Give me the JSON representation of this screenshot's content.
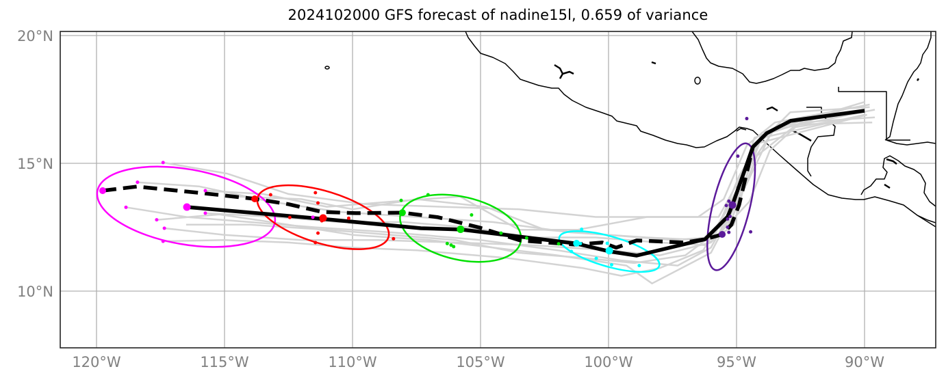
{
  "title": "2024102000 GFS forecast of nadine15l, 0.659 of variance",
  "chart_data": {
    "type": "map",
    "title": "2024102000 GFS forecast of nadine15l, 0.659 of variance",
    "extent": {
      "lon": [
        -121.4,
        -87.2
      ],
      "lat": [
        7.8,
        20.2
      ]
    },
    "grid": true,
    "xticks": [
      {
        "lon": -120,
        "label": "120°W"
      },
      {
        "lon": -115,
        "label": "115°W"
      },
      {
        "lon": -110,
        "label": "110°W"
      },
      {
        "lon": -105,
        "label": "105°W"
      },
      {
        "lon": -100,
        "label": "100°W"
      },
      {
        "lon": -95,
        "label": "95°W"
      },
      {
        "lon": -90,
        "label": "90°W"
      }
    ],
    "yticks": [
      {
        "lat": 20,
        "label": "20°N"
      },
      {
        "lat": 15,
        "label": "15°N"
      },
      {
        "lat": 10,
        "label": "10°N"
      }
    ],
    "colors": {
      "ensemble": "#d3d3d3",
      "mean_track": "#000000",
      "dashed_track": "#000000",
      "coast": "#000000",
      "grid": "#b0b0b0",
      "groups": [
        "#ff00ff",
        "#ff0000",
        "#00e000",
        "#00ffff",
        "#5b1a9a"
      ]
    },
    "mean_track": [
      [
        -116.47,
        13.29
      ],
      [
        -111.2,
        12.83
      ],
      [
        -107.33,
        12.46
      ],
      [
        -105.75,
        12.41
      ],
      [
        -101.31,
        11.87
      ],
      [
        -99.95,
        11.55
      ],
      [
        -98.9,
        11.39
      ],
      [
        -96.23,
        12.03
      ],
      [
        -95.35,
        12.91
      ],
      [
        -95.16,
        13.37
      ],
      [
        -94.36,
        15.64
      ],
      [
        -93.82,
        16.18
      ],
      [
        -92.89,
        16.66
      ],
      [
        -90.0,
        17.06
      ]
    ],
    "dashed_track": [
      [
        -119.76,
        13.93
      ],
      [
        -118.42,
        14.09
      ],
      [
        -115.75,
        13.82
      ],
      [
        -113.82,
        13.61
      ],
      [
        -112.5,
        13.4
      ],
      [
        -111.2,
        13.1
      ],
      [
        -109.87,
        13.05
      ],
      [
        -108.05,
        13.07
      ],
      [
        -106.66,
        12.89
      ],
      [
        -105.05,
        12.49
      ],
      [
        -103.45,
        11.98
      ],
      [
        -101.31,
        11.82
      ],
      [
        -100.24,
        11.9
      ],
      [
        -99.7,
        11.7
      ],
      [
        -98.9,
        11.98
      ],
      [
        -97.03,
        11.9
      ],
      [
        -96.23,
        12.03
      ],
      [
        -95.56,
        12.22
      ],
      [
        -95.2,
        12.6
      ],
      [
        -94.9,
        13.37
      ],
      [
        -94.36,
        15.64
      ]
    ],
    "ensemble_tracks": [
      [
        [
          -117.4,
          15.03
        ],
        [
          -114.9,
          14.6
        ],
        [
          -112.5,
          13.8
        ],
        [
          -109.5,
          13.4
        ],
        [
          -106.5,
          13.3
        ],
        [
          -103.5,
          13.2
        ],
        [
          -100.5,
          12.9
        ],
        [
          -99.2,
          12.9
        ],
        [
          -96.5,
          12.9
        ],
        [
          -95.5,
          13.6
        ],
        [
          -94.6,
          15.7
        ],
        [
          -93.5,
          16.6
        ],
        [
          -89.8,
          17.3
        ]
      ],
      [
        [
          -118.4,
          14.26
        ],
        [
          -116.0,
          14.1
        ],
        [
          -113.2,
          13.5
        ],
        [
          -110.5,
          13.1
        ],
        [
          -107.5,
          12.9
        ],
        [
          -104.5,
          12.7
        ],
        [
          -101.5,
          12.3
        ],
        [
          -98.5,
          12.1
        ],
        [
          -96.4,
          12.0
        ],
        [
          -95.2,
          12.8
        ],
        [
          -94.2,
          15.3
        ],
        [
          -92.8,
          16.4
        ],
        [
          -90.2,
          16.8
        ]
      ],
      [
        [
          -118.85,
          13.28
        ],
        [
          -116.5,
          12.9
        ],
        [
          -114.0,
          12.7
        ],
        [
          -111.5,
          12.5
        ],
        [
          -108.5,
          12.3
        ],
        [
          -105.0,
          12.0
        ],
        [
          -102.0,
          11.6
        ],
        [
          -99.5,
          11.2
        ],
        [
          -97.3,
          11.0
        ],
        [
          -96.0,
          11.7
        ],
        [
          -95.0,
          13.5
        ],
        [
          -94.1,
          15.8
        ],
        [
          -89.9,
          16.9
        ]
      ],
      [
        [
          -117.65,
          12.79
        ],
        [
          -115.2,
          13.0
        ],
        [
          -112.5,
          12.6
        ],
        [
          -110.0,
          12.2
        ],
        [
          -107.0,
          12.0
        ],
        [
          -104.5,
          11.7
        ],
        [
          -102.0,
          11.4
        ],
        [
          -99.3,
          11.0
        ],
        [
          -98.3,
          10.3
        ],
        [
          -96.0,
          11.5
        ],
        [
          -94.7,
          14.0
        ],
        [
          -93.6,
          16.3
        ],
        [
          -89.6,
          17.1
        ]
      ],
      [
        [
          -117.35,
          12.46
        ],
        [
          -115.0,
          12.2
        ],
        [
          -112.0,
          12.0
        ],
        [
          -109.0,
          12.0
        ],
        [
          -106.0,
          11.9
        ],
        [
          -103.0,
          11.8
        ],
        [
          -100.0,
          11.6
        ],
        [
          -98.0,
          11.4
        ],
        [
          -96.0,
          11.9
        ],
        [
          -94.5,
          13.5
        ],
        [
          -93.7,
          15.5
        ],
        [
          -92.5,
          16.6
        ],
        [
          -89.6,
          16.8
        ]
      ],
      [
        [
          -117.4,
          11.95
        ],
        [
          -115.0,
          12.0
        ],
        [
          -112.5,
          11.9
        ],
        [
          -110.0,
          11.7
        ],
        [
          -107.5,
          11.6
        ],
        [
          -104.0,
          11.3
        ],
        [
          -101.0,
          10.9
        ],
        [
          -99.5,
          10.6
        ],
        [
          -98.0,
          10.9
        ],
        [
          -96.3,
          11.6
        ],
        [
          -95.0,
          13.8
        ],
        [
          -94.3,
          16.0
        ],
        [
          -90.5,
          17.2
        ]
      ],
      [
        [
          -115.75,
          13.93
        ],
        [
          -113.5,
          13.8
        ],
        [
          -111.0,
          13.3
        ],
        [
          -108.5,
          13.5
        ],
        [
          -105.8,
          13.7
        ],
        [
          -103.5,
          12.4
        ],
        [
          -101.2,
          12.4
        ],
        [
          -98.5,
          12.9
        ],
        [
          -95.7,
          12.9
        ],
        [
          -95.2,
          13.8
        ],
        [
          -94.1,
          15.8
        ],
        [
          -92.9,
          17.0
        ],
        [
          -89.8,
          17.2
        ]
      ],
      [
        [
          -115.75,
          13.05
        ],
        [
          -113.0,
          12.9
        ],
        [
          -110.5,
          12.7
        ],
        [
          -108.0,
          12.7
        ],
        [
          -105.5,
          12.5
        ],
        [
          -103.0,
          12.1
        ],
        [
          -100.5,
          12.1
        ],
        [
          -98.0,
          11.9
        ],
        [
          -96.2,
          11.8
        ],
        [
          -95.1,
          12.6
        ],
        [
          -94.5,
          14.9
        ],
        [
          -93.4,
          16.5
        ],
        [
          -89.7,
          16.6
        ]
      ],
      [
        [
          -116.5,
          12.6
        ],
        [
          -114.0,
          12.6
        ],
        [
          -111.0,
          12.4
        ],
        [
          -108.5,
          12.2
        ],
        [
          -106.0,
          12.0
        ],
        [
          -103.5,
          11.5
        ],
        [
          -101.0,
          11.3
        ],
        [
          -99.0,
          11.1
        ],
        [
          -97.0,
          11.4
        ],
        [
          -95.8,
          12.3
        ],
        [
          -94.9,
          14.5
        ],
        [
          -94.0,
          16.0
        ],
        [
          -90.0,
          16.9
        ]
      ],
      [
        [
          -114.5,
          13.7
        ],
        [
          -112.0,
          13.6
        ],
        [
          -110.0,
          13.2
        ],
        [
          -107.5,
          13.6
        ],
        [
          -104.8,
          13.3
        ],
        [
          -102.5,
          12.4
        ],
        [
          -100.0,
          12.2
        ],
        [
          -97.5,
          12.0
        ],
        [
          -96.0,
          12.1
        ],
        [
          -94.8,
          14.3
        ],
        [
          -94.0,
          16.2
        ],
        [
          -90.0,
          17.4
        ]
      ]
    ],
    "time_groups": [
      {
        "color": "#ff00ff",
        "ellipse": {
          "lon": -116.5,
          "lat": 13.3,
          "a": 3.52,
          "b": 1.47,
          "angle": 10
        },
        "mean_point": [
          -116.47,
          13.29
        ],
        "dashed_point": [
          -119.76,
          13.93
        ],
        "members": [
          [
            -117.4,
            15.03
          ],
          [
            -118.4,
            14.26
          ],
          [
            -118.85,
            13.28
          ],
          [
            -117.65,
            12.79
          ],
          [
            -117.35,
            12.46
          ],
          [
            -117.4,
            11.95
          ],
          [
            -115.75,
            13.93
          ],
          [
            -115.75,
            13.05
          ],
          [
            -111.55,
            12.89
          ]
        ]
      },
      {
        "color": "#ff0000",
        "ellipse": {
          "lon": -111.15,
          "lat": 12.89,
          "a": 2.67,
          "b": 1.02,
          "angle": 17
        },
        "mean_point": [
          -111.15,
          12.86
        ],
        "dashed_point": [
          -113.82,
          13.61
        ],
        "members": [
          [
            -113.2,
            13.77
          ],
          [
            -111.45,
            13.85
          ],
          [
            -111.35,
            13.45
          ],
          [
            -112.45,
            12.88
          ],
          [
            -111.35,
            12.27
          ],
          [
            -111.45,
            11.9
          ],
          [
            -110.15,
            12.85
          ],
          [
            -111.2,
            12.75
          ],
          [
            -108.4,
            12.05
          ]
        ]
      },
      {
        "color": "#00e000",
        "ellipse": {
          "lon": -105.78,
          "lat": 12.46,
          "a": 2.41,
          "b": 1.23,
          "angle": 13
        },
        "mean_point": [
          -105.78,
          12.42
        ],
        "dashed_point": [
          -108.05,
          13.07
        ],
        "members": [
          [
            -107.05,
            13.77
          ],
          [
            -108.1,
            13.55
          ],
          [
            -105.35,
            12.98
          ],
          [
            -106.3,
            11.86
          ],
          [
            -106.15,
            11.8
          ],
          [
            -106.05,
            11.74
          ],
          [
            -104.2,
            12.27
          ],
          [
            -103.2,
            12.08
          ],
          [
            -101.95,
            11.85
          ]
        ]
      },
      {
        "color": "#00ffff",
        "ellipse": {
          "lon": -99.97,
          "lat": 11.55,
          "a": 2.03,
          "b": 0.59,
          "angle": 16
        },
        "mean_point": [
          -99.97,
          11.58
        ],
        "dashed_point": [
          -101.25,
          11.87
        ],
        "members": [
          [
            -101.05,
            12.42
          ],
          [
            -101.1,
            11.86
          ],
          [
            -100.05,
            11.87
          ],
          [
            -100.48,
            11.28
          ],
          [
            -99.88,
            11.03
          ],
          [
            -98.8,
            11.0
          ],
          [
            -101.45,
            11.55
          ]
        ]
      },
      {
        "color": "#5b1a9a",
        "ellipse": {
          "lon": -95.21,
          "lat": 13.3,
          "a": 2.55,
          "b": 0.72,
          "angle": -76
        },
        "mean_point": [
          -95.16,
          13.37
        ],
        "dashed_point": [
          -95.56,
          12.22
        ],
        "members": [
          [
            -94.6,
            16.75
          ],
          [
            -94.95,
            15.28
          ],
          [
            -95.3,
            13.52
          ],
          [
            -95.4,
            13.35
          ],
          [
            -95.35,
            12.82
          ],
          [
            -95.25,
            12.92
          ],
          [
            -95.35,
            12.5
          ],
          [
            -95.3,
            12.3
          ],
          [
            -94.45,
            12.32
          ]
        ]
      }
    ]
  }
}
